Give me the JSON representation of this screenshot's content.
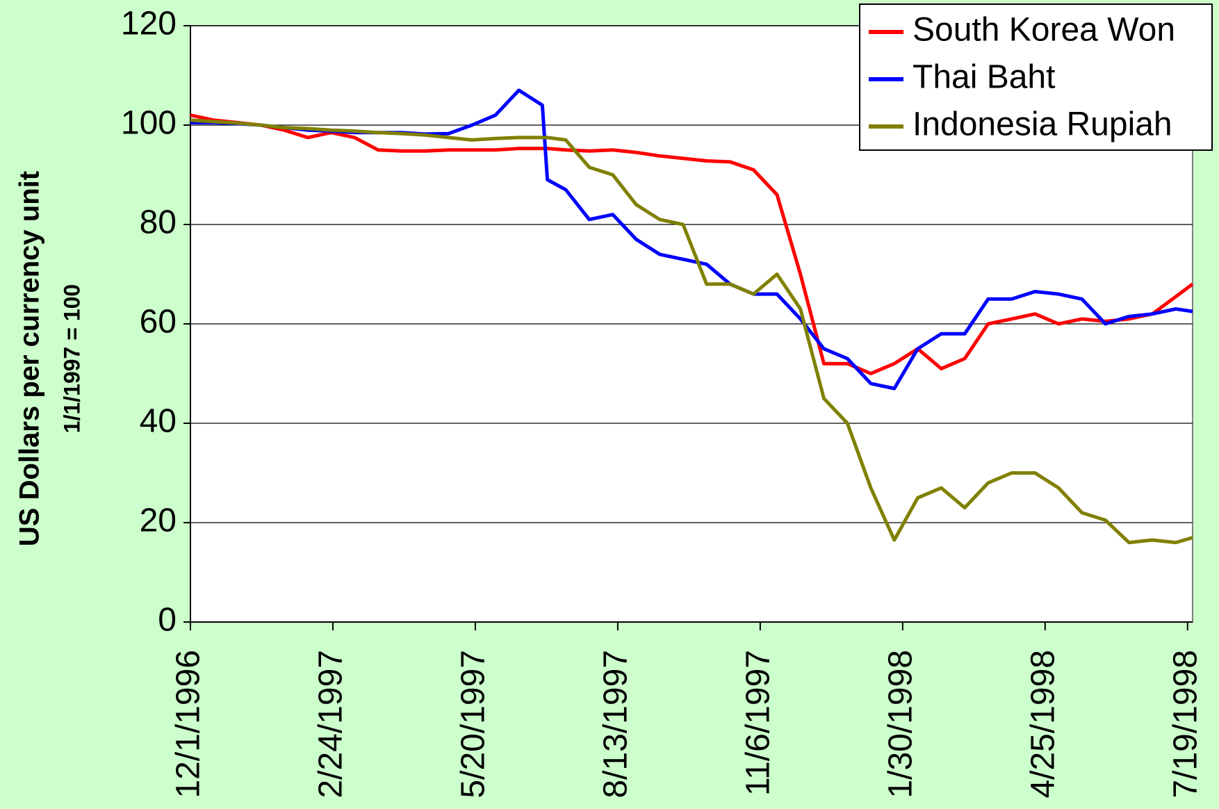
{
  "chart_data": {
    "type": "line",
    "x_axis_label": null,
    "y_axis_label": [
      "US Dollars per currency unit",
      "1/1/1997 = 100"
    ],
    "x": [
      "12/1/1996",
      "12/15/1996",
      "12/29/1996",
      "1/12/1997",
      "1/26/1997",
      "2/9/1997",
      "2/23/1997",
      "3/9/1997",
      "3/23/1997",
      "4/6/1997",
      "4/20/1997",
      "5/4/1997",
      "5/18/1997",
      "6/1/1997",
      "6/15/1997",
      "6/29/1997",
      "7/2/1997",
      "7/13/1997",
      "7/27/1997",
      "8/10/1997",
      "8/24/1997",
      "9/7/1997",
      "9/21/1997",
      "10/5/1997",
      "10/19/1997",
      "11/2/1997",
      "11/16/1997",
      "11/30/1997",
      "12/14/1997",
      "12/28/1997",
      "1/11/1998",
      "1/25/1998",
      "2/8/1998",
      "2/22/1998",
      "3/8/1998",
      "3/22/1998",
      "4/5/1998",
      "4/19/1998",
      "5/3/1998",
      "5/17/1998",
      "5/31/1998",
      "6/14/1998",
      "6/28/1998",
      "7/12/1998",
      "7/22/1998"
    ],
    "series": [
      {
        "name": "South Korea Won",
        "color": "#ff0000",
        "values": [
          102,
          101,
          100.5,
          100,
          99,
          97.5,
          98.5,
          97.5,
          95,
          94.8,
          94.8,
          95,
          95,
          95,
          95.3,
          95.3,
          95.3,
          95,
          94.8,
          95,
          94.5,
          93.8,
          93.3,
          92.8,
          92.6,
          91,
          86,
          70,
          52,
          52,
          50,
          52,
          55,
          51,
          53,
          60,
          61,
          62,
          60,
          61,
          60.5,
          61,
          62,
          65.5,
          68
        ]
      },
      {
        "name": "Thai Baht",
        "color": "#0000ff",
        "values": [
          100.5,
          100.5,
          100.3,
          100,
          99.5,
          99,
          98.8,
          98.5,
          98.5,
          98.5,
          98.2,
          98.3,
          100,
          102,
          107,
          104,
          89,
          87,
          81,
          82,
          77,
          74,
          73,
          72,
          68,
          66,
          66,
          61,
          55,
          53,
          48,
          47,
          55,
          58,
          58,
          65,
          65,
          66.5,
          66,
          65,
          60,
          61.5,
          62,
          63,
          62.5
        ]
      },
      {
        "name": "Indonesia Rupiah",
        "color": "#808000",
        "values": [
          101,
          100.7,
          100.4,
          100,
          99.5,
          99.3,
          99,
          98.8,
          98.5,
          98.3,
          98,
          97.5,
          97,
          97.3,
          97.5,
          97.5,
          97.5,
          97,
          91.5,
          90,
          84,
          81,
          80,
          68,
          68,
          66,
          70,
          63,
          45,
          40,
          27,
          16.5,
          25,
          27,
          23,
          28,
          30,
          30,
          27,
          22,
          20.5,
          16,
          16.5,
          16,
          17
        ]
      }
    ],
    "xlim": [
      "12/1/1996",
      "7/22/1998"
    ],
    "xticks": [
      "12/1/1996",
      "2/24/1997",
      "5/20/1997",
      "8/13/1997",
      "11/6/1997",
      "1/30/1998",
      "4/25/1998",
      "7/19/1998"
    ],
    "ylim": [
      0,
      120
    ],
    "yticks": [
      0,
      20,
      40,
      60,
      80,
      100,
      120
    ],
    "grid": true,
    "legend": "upper right"
  }
}
